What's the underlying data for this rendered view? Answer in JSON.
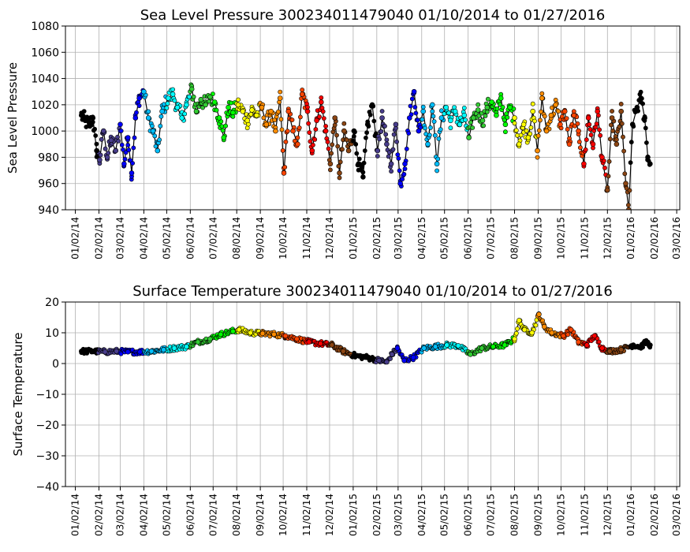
{
  "chart_data": [
    {
      "type": "scatter",
      "title": "Sea Level Pressure 300234011479040  01/10/2014 to 01/27/2016",
      "xlabel": "",
      "ylabel": "Sea Level Pressure",
      "ylim": [
        940,
        1080
      ],
      "yticks": [
        940,
        960,
        980,
        1000,
        1020,
        1040,
        1060,
        1080
      ],
      "xlim": [
        "2013-12-20",
        "2016-03-06"
      ],
      "grid": true,
      "marker_edge_color": "#000000",
      "month_colors": [
        "#000000",
        "#483d8b",
        "#0000ff",
        "#00bfff",
        "#00ffff",
        "#32cd32",
        "#00ff00",
        "#ffff00",
        "#ff8c00",
        "#ff4500",
        "#ff0000",
        "#8b4513"
      ],
      "series": [
        {
          "date": "2014-01-10",
          "value": 1012
        },
        {
          "date": "2014-01-15",
          "value": 1008
        },
        {
          "date": "2014-01-20",
          "value": 1004
        },
        {
          "date": "2014-01-25",
          "value": 1010
        },
        {
          "date": "2014-01-30",
          "value": 985
        },
        {
          "date": "2014-02-03",
          "value": 978
        },
        {
          "date": "2014-02-08",
          "value": 1000
        },
        {
          "date": "2014-02-13",
          "value": 980
        },
        {
          "date": "2014-02-18",
          "value": 993
        },
        {
          "date": "2014-02-24",
          "value": 985
        },
        {
          "date": "2014-03-02",
          "value": 1005
        },
        {
          "date": "2014-03-07",
          "value": 975
        },
        {
          "date": "2014-03-12",
          "value": 995
        },
        {
          "date": "2014-03-17",
          "value": 968
        },
        {
          "date": "2014-03-22",
          "value": 1010
        },
        {
          "date": "2014-03-27",
          "value": 1025
        },
        {
          "date": "2014-04-02",
          "value": 1030
        },
        {
          "date": "2014-04-08",
          "value": 1010
        },
        {
          "date": "2014-04-14",
          "value": 1000
        },
        {
          "date": "2014-04-20",
          "value": 985
        },
        {
          "date": "2014-04-26",
          "value": 1015
        },
        {
          "date": "2014-05-04",
          "value": 1025
        },
        {
          "date": "2014-05-10",
          "value": 1028
        },
        {
          "date": "2014-05-16",
          "value": 1018
        },
        {
          "date": "2014-05-22",
          "value": 1010
        },
        {
          "date": "2014-05-28",
          "value": 1020
        },
        {
          "date": "2014-06-04",
          "value": 1032
        },
        {
          "date": "2014-06-10",
          "value": 1015
        },
        {
          "date": "2014-06-16",
          "value": 1024
        },
        {
          "date": "2014-06-22",
          "value": 1020
        },
        {
          "date": "2014-06-28",
          "value": 1026
        },
        {
          "date": "2014-07-04",
          "value": 1022
        },
        {
          "date": "2014-07-10",
          "value": 1010
        },
        {
          "date": "2014-07-16",
          "value": 995
        },
        {
          "date": "2014-07-22",
          "value": 1018
        },
        {
          "date": "2014-07-28",
          "value": 1014
        },
        {
          "date": "2014-08-04",
          "value": 1020
        },
        {
          "date": "2014-08-10",
          "value": 1015
        },
        {
          "date": "2014-08-16",
          "value": 1008
        },
        {
          "date": "2014-08-22",
          "value": 1016
        },
        {
          "date": "2014-08-28",
          "value": 1012
        },
        {
          "date": "2014-09-04",
          "value": 1018
        },
        {
          "date": "2014-09-10",
          "value": 1005
        },
        {
          "date": "2014-09-16",
          "value": 1015
        },
        {
          "date": "2014-09-22",
          "value": 1000
        },
        {
          "date": "2014-09-28",
          "value": 1025
        },
        {
          "date": "2014-10-03",
          "value": 968
        },
        {
          "date": "2014-10-09",
          "value": 1015
        },
        {
          "date": "2014-10-15",
          "value": 1000
        },
        {
          "date": "2014-10-21",
          "value": 990
        },
        {
          "date": "2014-10-27",
          "value": 1028
        },
        {
          "date": "2014-11-03",
          "value": 1015
        },
        {
          "date": "2014-11-09",
          "value": 985
        },
        {
          "date": "2014-11-15",
          "value": 1008
        },
        {
          "date": "2014-11-21",
          "value": 1022
        },
        {
          "date": "2014-11-27",
          "value": 1000
        },
        {
          "date": "2014-12-03",
          "value": 975
        },
        {
          "date": "2014-12-09",
          "value": 1010
        },
        {
          "date": "2014-12-15",
          "value": 968
        },
        {
          "date": "2014-12-21",
          "value": 1000
        },
        {
          "date": "2014-12-27",
          "value": 985
        },
        {
          "date": "2015-01-03",
          "value": 1000
        },
        {
          "date": "2015-01-09",
          "value": 975
        },
        {
          "date": "2015-01-15",
          "value": 965
        },
        {
          "date": "2015-01-21",
          "value": 1005
        },
        {
          "date": "2015-01-27",
          "value": 1020
        },
        {
          "date": "2015-02-03",
          "value": 985
        },
        {
          "date": "2015-02-09",
          "value": 1010
        },
        {
          "date": "2015-02-15",
          "value": 990
        },
        {
          "date": "2015-02-21",
          "value": 975
        },
        {
          "date": "2015-02-27",
          "value": 1005
        },
        {
          "date": "2015-03-05",
          "value": 960
        },
        {
          "date": "2015-03-11",
          "value": 975
        },
        {
          "date": "2015-03-17",
          "value": 1010
        },
        {
          "date": "2015-03-23",
          "value": 1030
        },
        {
          "date": "2015-03-29",
          "value": 1000
        },
        {
          "date": "2015-04-04",
          "value": 1015
        },
        {
          "date": "2015-04-10",
          "value": 990
        },
        {
          "date": "2015-04-16",
          "value": 1020
        },
        {
          "date": "2015-04-22",
          "value": 975
        },
        {
          "date": "2015-04-28",
          "value": 1010
        },
        {
          "date": "2015-05-04",
          "value": 1018
        },
        {
          "date": "2015-05-10",
          "value": 1008
        },
        {
          "date": "2015-05-16",
          "value": 1015
        },
        {
          "date": "2015-05-22",
          "value": 1005
        },
        {
          "date": "2015-05-28",
          "value": 1012
        },
        {
          "date": "2015-06-03",
          "value": 995
        },
        {
          "date": "2015-06-09",
          "value": 1010
        },
        {
          "date": "2015-06-15",
          "value": 1016
        },
        {
          "date": "2015-06-21",
          "value": 1008
        },
        {
          "date": "2015-06-27",
          "value": 1018
        },
        {
          "date": "2015-07-03",
          "value": 1022
        },
        {
          "date": "2015-07-09",
          "value": 1012
        },
        {
          "date": "2015-07-15",
          "value": 1025
        },
        {
          "date": "2015-07-21",
          "value": 1005
        },
        {
          "date": "2015-07-27",
          "value": 1018
        },
        {
          "date": "2015-08-02",
          "value": 1010
        },
        {
          "date": "2015-08-08",
          "value": 990
        },
        {
          "date": "2015-08-14",
          "value": 1005
        },
        {
          "date": "2015-08-20",
          "value": 995
        },
        {
          "date": "2015-08-26",
          "value": 1015
        },
        {
          "date": "2015-09-01",
          "value": 985
        },
        {
          "date": "2015-09-07",
          "value": 1025
        },
        {
          "date": "2015-09-13",
          "value": 1000
        },
        {
          "date": "2015-09-19",
          "value": 1012
        },
        {
          "date": "2015-09-25",
          "value": 1020
        },
        {
          "date": "2015-10-01",
          "value": 1005
        },
        {
          "date": "2015-10-07",
          "value": 1015
        },
        {
          "date": "2015-10-13",
          "value": 990
        },
        {
          "date": "2015-10-19",
          "value": 1012
        },
        {
          "date": "2015-10-25",
          "value": 1000
        },
        {
          "date": "2015-11-01",
          "value": 975
        },
        {
          "date": "2015-11-07",
          "value": 1010
        },
        {
          "date": "2015-11-13",
          "value": 990
        },
        {
          "date": "2015-11-19",
          "value": 1015
        },
        {
          "date": "2015-11-25",
          "value": 980
        },
        {
          "date": "2015-12-02",
          "value": 955
        },
        {
          "date": "2015-12-08",
          "value": 1010
        },
        {
          "date": "2015-12-14",
          "value": 990
        },
        {
          "date": "2015-12-20",
          "value": 1015
        },
        {
          "date": "2015-12-26",
          "value": 960
        },
        {
          "date": "2015-12-30",
          "value": 940
        },
        {
          "date": "2016-01-04",
          "value": 1005
        },
        {
          "date": "2016-01-10",
          "value": 1018
        },
        {
          "date": "2016-01-15",
          "value": 1025
        },
        {
          "date": "2016-01-20",
          "value": 1010
        },
        {
          "date": "2016-01-24",
          "value": 980
        },
        {
          "date": "2016-01-27",
          "value": 975
        }
      ]
    },
    {
      "type": "scatter",
      "title": "Surface Temperature 300234011479040  01/10/2014 to 01/27/2016",
      "xlabel": "",
      "ylabel": "Surface Temperature",
      "ylim": [
        -40,
        20
      ],
      "yticks": [
        -40,
        -30,
        -20,
        -10,
        0,
        10,
        20
      ],
      "xlim": [
        "2013-12-20",
        "2016-03-06"
      ],
      "grid": true,
      "marker_edge_color": "#000000",
      "month_colors": [
        "#000000",
        "#483d8b",
        "#0000ff",
        "#00bfff",
        "#00ffff",
        "#32cd32",
        "#00ff00",
        "#ffff00",
        "#ff8c00",
        "#ff4500",
        "#ff0000",
        "#8b4513"
      ],
      "series": [
        {
          "date": "2014-01-10",
          "value": 4
        },
        {
          "date": "2014-01-25",
          "value": 4
        },
        {
          "date": "2014-02-10",
          "value": 3.8
        },
        {
          "date": "2014-02-25",
          "value": 4
        },
        {
          "date": "2014-03-12",
          "value": 3.8
        },
        {
          "date": "2014-03-28",
          "value": 3.8
        },
        {
          "date": "2014-04-12",
          "value": 4
        },
        {
          "date": "2014-04-28",
          "value": 4.5
        },
        {
          "date": "2014-05-12",
          "value": 5
        },
        {
          "date": "2014-05-28",
          "value": 5.5
        },
        {
          "date": "2014-06-12",
          "value": 7
        },
        {
          "date": "2014-06-28",
          "value": 8
        },
        {
          "date": "2014-07-12",
          "value": 9.5
        },
        {
          "date": "2014-07-28",
          "value": 10.5
        },
        {
          "date": "2014-08-05",
          "value": 11
        },
        {
          "date": "2014-08-20",
          "value": 10
        },
        {
          "date": "2014-09-05",
          "value": 9.8
        },
        {
          "date": "2014-09-20",
          "value": 9.5
        },
        {
          "date": "2014-10-05",
          "value": 9
        },
        {
          "date": "2014-10-20",
          "value": 8
        },
        {
          "date": "2014-11-05",
          "value": 7
        },
        {
          "date": "2014-11-20",
          "value": 6.5
        },
        {
          "date": "2014-12-05",
          "value": 6
        },
        {
          "date": "2014-12-20",
          "value": 4
        },
        {
          "date": "2015-01-05",
          "value": 2.5
        },
        {
          "date": "2015-01-20",
          "value": 2
        },
        {
          "date": "2015-02-05",
          "value": 1
        },
        {
          "date": "2015-02-15",
          "value": 0.5
        },
        {
          "date": "2015-02-22",
          "value": 3
        },
        {
          "date": "2015-03-01",
          "value": 5
        },
        {
          "date": "2015-03-10",
          "value": 1
        },
        {
          "date": "2015-03-22",
          "value": 2
        },
        {
          "date": "2015-04-05",
          "value": 5
        },
        {
          "date": "2015-04-20",
          "value": 5.5
        },
        {
          "date": "2015-05-05",
          "value": 6
        },
        {
          "date": "2015-05-20",
          "value": 5.8
        },
        {
          "date": "2015-06-05",
          "value": 3
        },
        {
          "date": "2015-06-20",
          "value": 5
        },
        {
          "date": "2015-07-05",
          "value": 5.5
        },
        {
          "date": "2015-07-20",
          "value": 6
        },
        {
          "date": "2015-08-02",
          "value": 8
        },
        {
          "date": "2015-08-08",
          "value": 14
        },
        {
          "date": "2015-08-15",
          "value": 11
        },
        {
          "date": "2015-08-25",
          "value": 10
        },
        {
          "date": "2015-09-03",
          "value": 16
        },
        {
          "date": "2015-09-10",
          "value": 12
        },
        {
          "date": "2015-09-20",
          "value": 10
        },
        {
          "date": "2015-10-05",
          "value": 9
        },
        {
          "date": "2015-10-15",
          "value": 11
        },
        {
          "date": "2015-10-25",
          "value": 7
        },
        {
          "date": "2015-11-05",
          "value": 6
        },
        {
          "date": "2015-11-15",
          "value": 9
        },
        {
          "date": "2015-11-25",
          "value": 5
        },
        {
          "date": "2015-12-05",
          "value": 4
        },
        {
          "date": "2015-12-20",
          "value": 4.5
        },
        {
          "date": "2016-01-05",
          "value": 6
        },
        {
          "date": "2016-01-15",
          "value": 5.5
        },
        {
          "date": "2016-01-22",
          "value": 7
        },
        {
          "date": "2016-01-27",
          "value": 6
        }
      ]
    }
  ],
  "x_tick_labels": [
    "01/02/14",
    "02/02/14",
    "03/02/14",
    "04/02/14",
    "05/02/14",
    "06/02/14",
    "07/02/14",
    "08/02/14",
    "09/02/14",
    "10/02/14",
    "11/02/14",
    "12/02/14",
    "01/02/15",
    "02/02/15",
    "03/02/15",
    "04/02/15",
    "05/02/15",
    "06/02/15",
    "07/02/15",
    "08/02/15",
    "09/02/15",
    "10/02/15",
    "11/02/15",
    "12/02/15",
    "01/02/16",
    "02/02/16",
    "03/02/16"
  ],
  "x_tick_dates": [
    "2014-01-02",
    "2014-02-02",
    "2014-03-02",
    "2014-04-02",
    "2014-05-02",
    "2014-06-02",
    "2014-07-02",
    "2014-08-02",
    "2014-09-02",
    "2014-10-02",
    "2014-11-02",
    "2014-12-02",
    "2015-01-02",
    "2015-02-02",
    "2015-03-02",
    "2015-04-02",
    "2015-05-02",
    "2015-06-02",
    "2015-07-02",
    "2015-08-02",
    "2015-09-02",
    "2015-10-02",
    "2015-11-02",
    "2015-12-02",
    "2016-01-02",
    "2016-02-02",
    "2016-03-02"
  ]
}
